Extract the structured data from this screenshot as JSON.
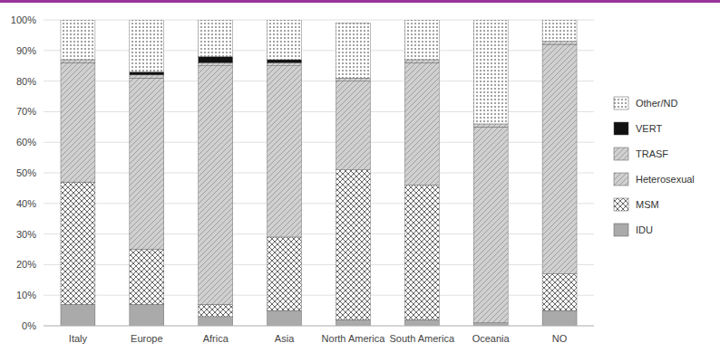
{
  "chart_data": {
    "type": "bar",
    "stacked": true,
    "categories": [
      "Italy",
      "Europe",
      "Africa",
      "Asia",
      "North America",
      "South America",
      "Oceania",
      "NO"
    ],
    "series": [
      {
        "name": "IDU",
        "color": "#aaaaaa",
        "values": [
          7,
          7,
          3,
          5,
          2,
          2,
          1,
          5
        ]
      },
      {
        "name": "MSM",
        "color": "#ffffff",
        "values": [
          40,
          18,
          4,
          24,
          49,
          44,
          0,
          12
        ]
      },
      {
        "name": "Heterosexual",
        "color": "#d0d0d0",
        "values": [
          39,
          56,
          78,
          56,
          29,
          40,
          64,
          75
        ]
      },
      {
        "name": "TRASF",
        "color": "#d0d0d0",
        "values": [
          1,
          1,
          1,
          1,
          1,
          1,
          1,
          1
        ]
      },
      {
        "name": "VERT",
        "color": "#111111",
        "values": [
          0,
          1,
          2,
          1,
          0,
          0,
          0,
          0
        ]
      },
      {
        "name": "Other/ND",
        "color": "#ffffff",
        "values": [
          13,
          17,
          12,
          13,
          18,
          13,
          34,
          7
        ]
      }
    ],
    "ylim": [
      0,
      100
    ],
    "yticks": [
      {
        "value": 0,
        "label": "0%"
      },
      {
        "value": 10,
        "label": "10%"
      },
      {
        "value": 20,
        "label": "20%"
      },
      {
        "value": 30,
        "label": "30%"
      },
      {
        "value": 40,
        "label": "40%"
      },
      {
        "value": 50,
        "label": "50%"
      },
      {
        "value": 60,
        "label": "60%"
      },
      {
        "value": 70,
        "label": "70%"
      },
      {
        "value": 80,
        "label": "80%"
      },
      {
        "value": 90,
        "label": "90%"
      },
      {
        "value": 100,
        "label": "100%"
      }
    ],
    "grid": true,
    "legend": "right"
  }
}
